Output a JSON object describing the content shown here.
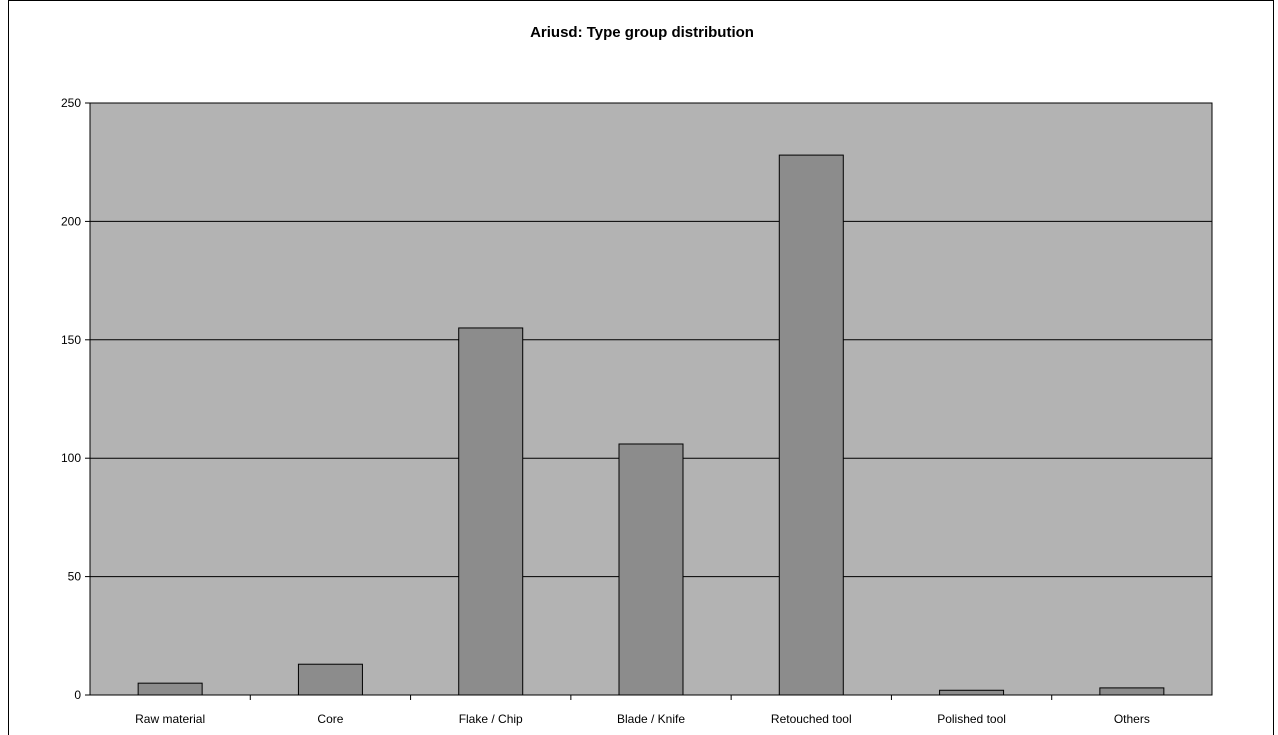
{
  "chart_data": {
    "type": "bar",
    "title": "Ariusd: Type group distribution",
    "xlabel": "",
    "ylabel": "",
    "categories": [
      "Raw material",
      "Core",
      "Flake / Chip",
      "Blade / Knife",
      "Retouched tool",
      "Polished tool",
      "Others"
    ],
    "values": [
      5,
      13,
      155,
      106,
      228,
      2,
      3
    ],
    "ylim": [
      0,
      250
    ],
    "yticks": [
      "0",
      "50",
      "100",
      "150",
      "200",
      "250"
    ],
    "grid": true,
    "legend": "none",
    "colors": {
      "plot_background": "#b3b3b3",
      "bar_fill": "#8c8c8c",
      "bar_stroke": "#000000",
      "gridline": "#000000"
    }
  }
}
